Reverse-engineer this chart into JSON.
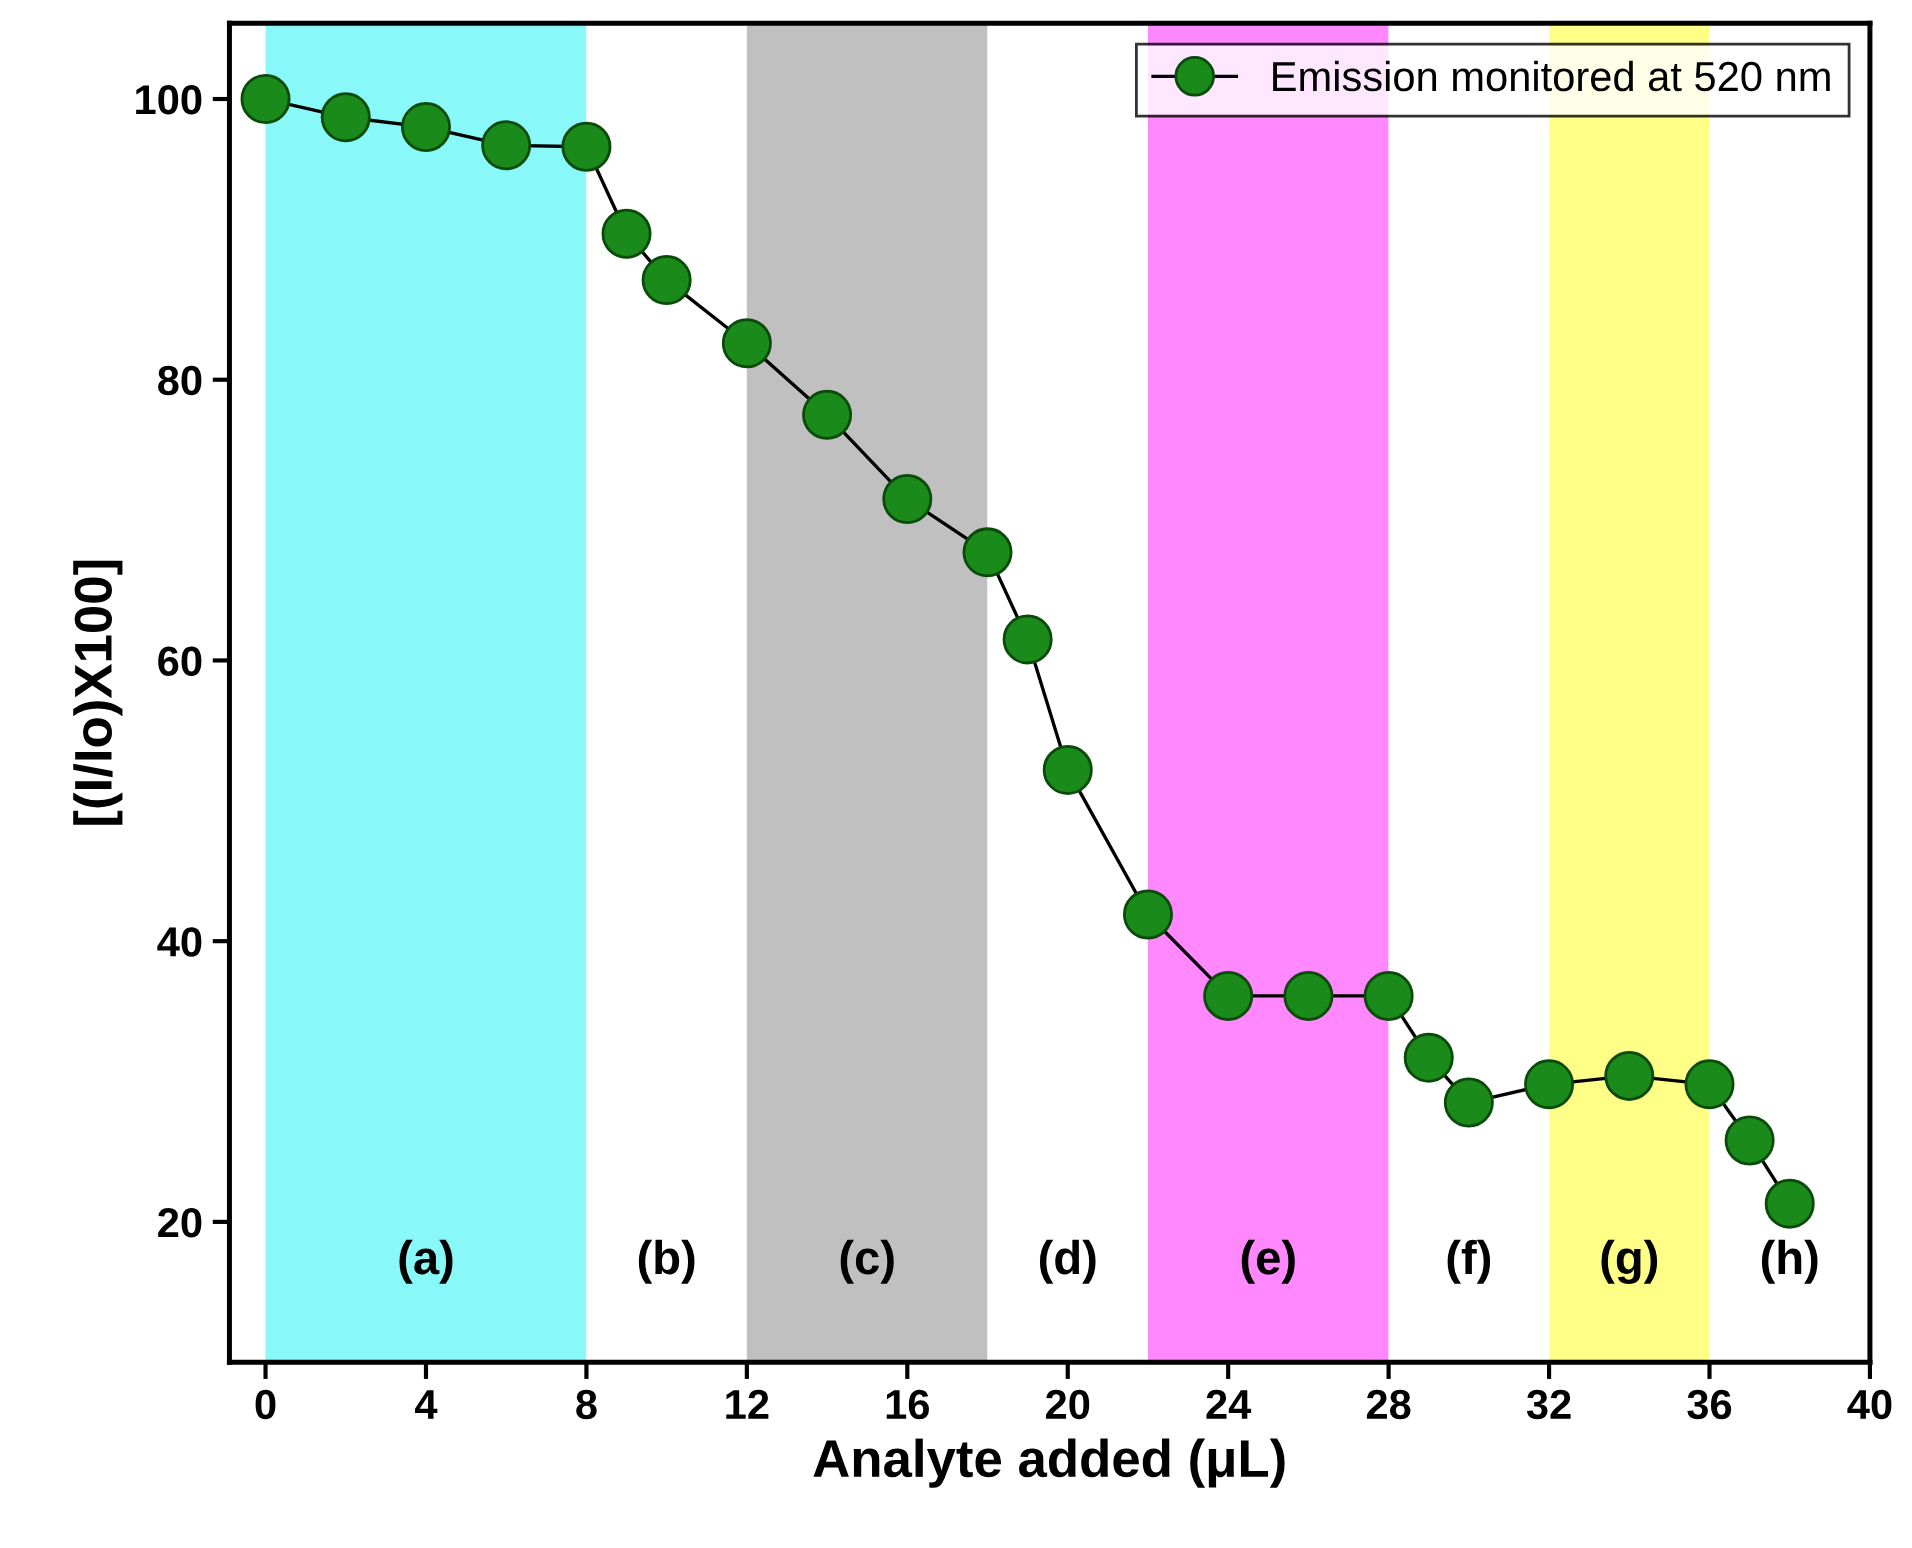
{
  "chart_data": {
    "type": "line",
    "xlabel": "Analyte added (μL)",
    "ylabel": "[(I/Io)X100]",
    "x": [
      0,
      2,
      4,
      6,
      8,
      9,
      10,
      12,
      14,
      16,
      18,
      19,
      20,
      22,
      24,
      26,
      28,
      29,
      30,
      32,
      34,
      36,
      37,
      38
    ],
    "series": [
      {
        "name": "Emission monitored at 520 nm",
        "color": "#1a8a1a",
        "values": [
          100,
          98.7,
          98.0,
          96.7,
          96.6,
          90.4,
          87.1,
          82.6,
          77.5,
          71.5,
          67.7,
          61.5,
          52.2,
          41.9,
          36.1,
          36.1,
          36.1,
          31.7,
          28.5,
          29.8,
          30.4,
          29.8,
          25.8,
          21.3
        ]
      }
    ],
    "xlim": [
      -0.9,
      40
    ],
    "ylim": [
      10,
      105.4
    ],
    "xticks": [
      0,
      4,
      8,
      12,
      16,
      20,
      24,
      28,
      32,
      36,
      40
    ],
    "yticks": [
      20,
      40,
      60,
      80,
      100
    ],
    "bands": [
      {
        "axis": "x",
        "from": 0,
        "to": 8,
        "label": "(a)",
        "color": "#88f8f8"
      },
      {
        "axis": "x",
        "from": 8,
        "to": 12,
        "label": "(b)",
        "color": "#ffffff"
      },
      {
        "axis": "x",
        "from": 12,
        "to": 18,
        "label": "(c)",
        "color": "#c0c0c0"
      },
      {
        "axis": "x",
        "from": 18,
        "to": 22,
        "label": "(d)",
        "color": "#ffffff"
      },
      {
        "axis": "x",
        "from": 22,
        "to": 28,
        "label": "(e)",
        "color": "#ff88ff"
      },
      {
        "axis": "x",
        "from": 28,
        "to": 32,
        "label": "(f)",
        "color": "#ffffff"
      },
      {
        "axis": "x",
        "from": 32,
        "to": 36,
        "label": "(g)",
        "color": "#ffff88"
      },
      {
        "axis": "x",
        "from": 36,
        "to": 40,
        "label": "(h)",
        "color": "#ffffff"
      }
    ],
    "marker": "circle",
    "line_style": "solid",
    "legend": "top right",
    "grid": false
  }
}
